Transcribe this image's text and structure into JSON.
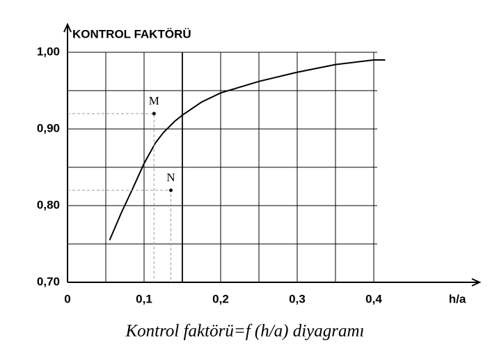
{
  "chart_data": {
    "type": "line",
    "ylabel": "KONTROL FAKTÖRÜ",
    "xlabel": "h/a",
    "caption": "Kontrol faktörü=f (h/a) diyagramı",
    "x": [
      0.055,
      0.07,
      0.085,
      0.1,
      0.115,
      0.125,
      0.14,
      0.15,
      0.175,
      0.2,
      0.25,
      0.3,
      0.35,
      0.4,
      0.415
    ],
    "series": [
      {
        "color": "#000000",
        "values": [
          0.755,
          0.79,
          0.822,
          0.855,
          0.882,
          0.895,
          0.91,
          0.918,
          0.935,
          0.947,
          0.962,
          0.974,
          0.984,
          0.99,
          0.99
        ]
      }
    ],
    "points": [
      {
        "label": "M",
        "x": 0.113,
        "y": 0.92
      },
      {
        "label": "N",
        "x": 0.135,
        "y": 0.82
      }
    ],
    "xlim": [
      0,
      0.4
    ],
    "ylim": [
      0.7,
      1.0
    ],
    "xticks": [
      0,
      {
        "value": 0.1,
        "label": "0,1"
      },
      {
        "value": 0.2,
        "label": "0,2"
      },
      {
        "value": 0.3,
        "label": "0,3"
      },
      {
        "value": 0.4,
        "label": "0,4"
      }
    ],
    "yticks": [
      {
        "value": 0.7,
        "label": "0,70"
      },
      {
        "value": 0.8,
        "label": "0,80"
      },
      {
        "value": 0.9,
        "label": "0,90"
      },
      {
        "value": 1.0,
        "label": "1,00"
      }
    ],
    "grid": true,
    "grid_subdivisions": 2
  }
}
